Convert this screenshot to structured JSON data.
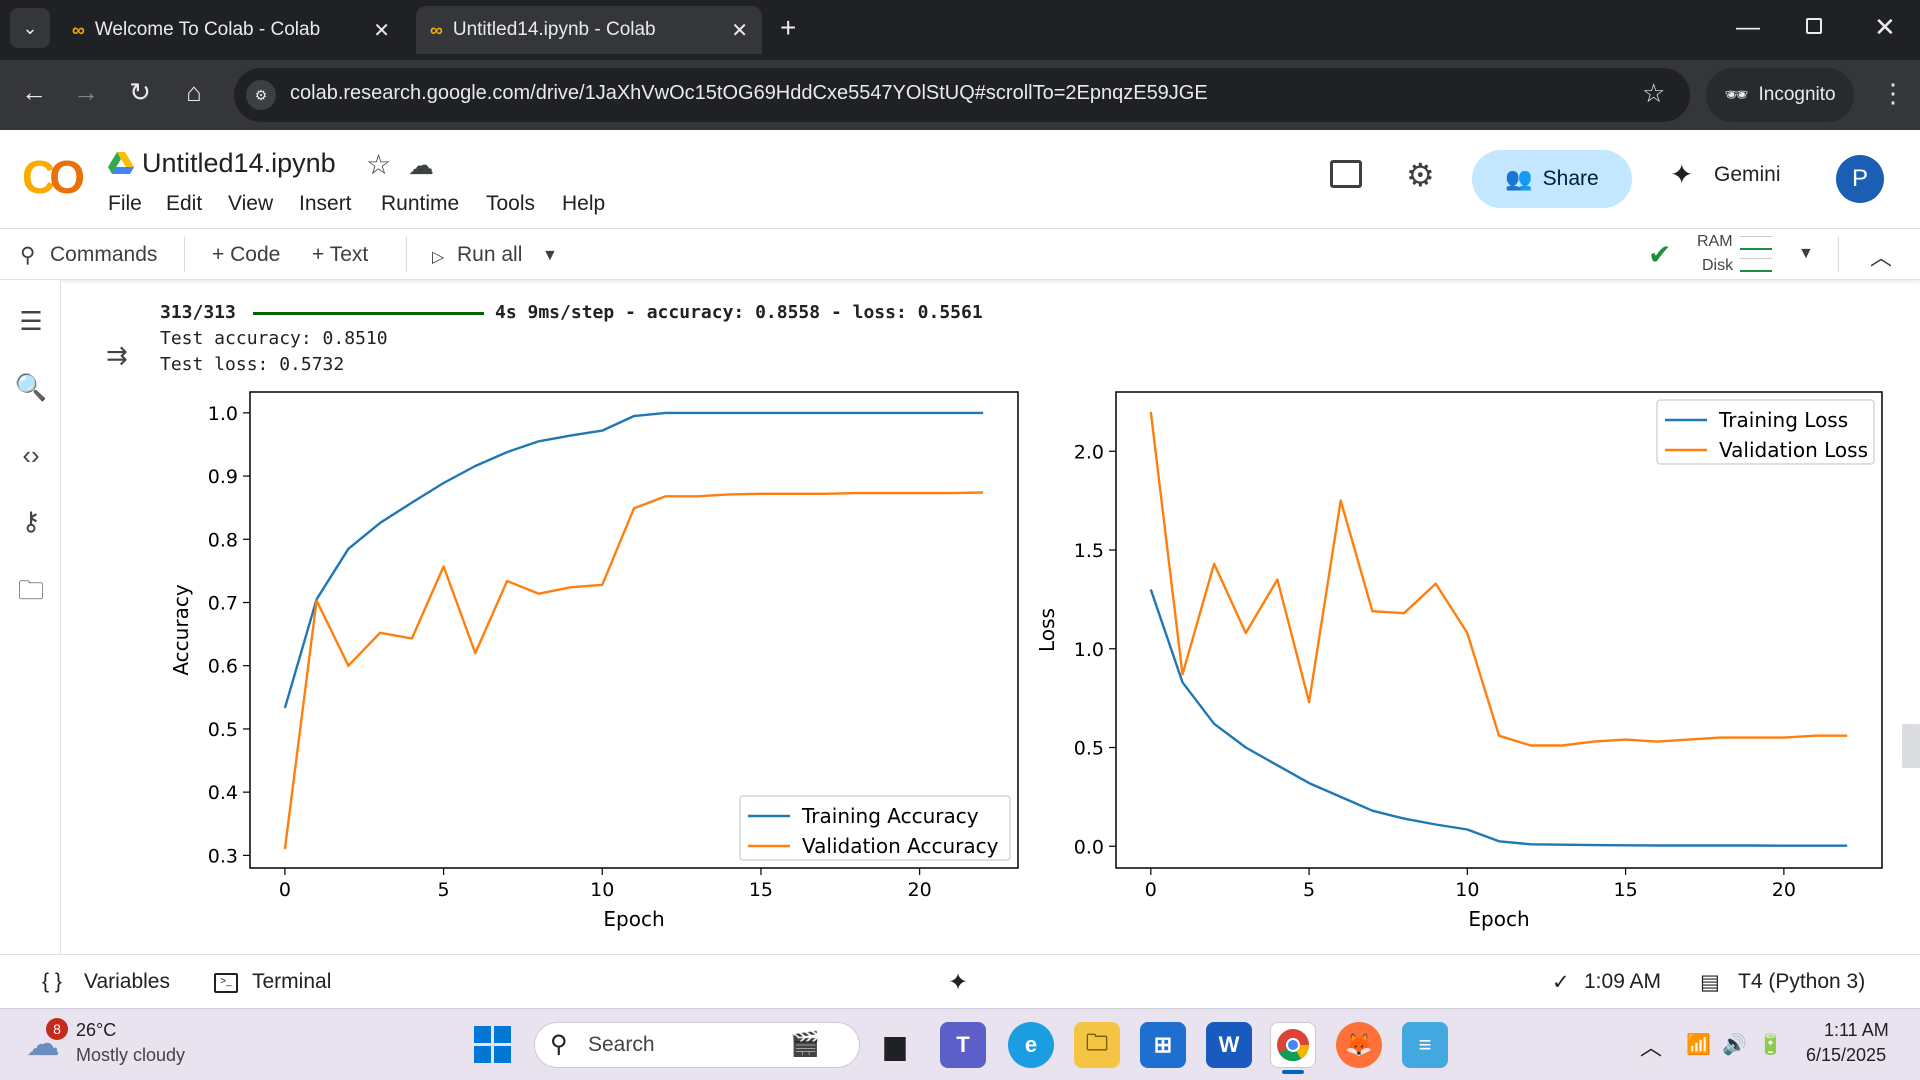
{
  "browser": {
    "tabs": [
      {
        "label": "Welcome To Colab - Colab",
        "active": false
      },
      {
        "label": "Untitled14.ipynb - Colab",
        "active": true
      }
    ],
    "url": "colab.research.google.com/drive/1JaXhVwOc15tOG69HddCxe5547YOlStUQ#scrollTo=2EpnqzE59JGE",
    "incognito_label": "Incognito"
  },
  "header": {
    "logo": "CO",
    "notebook_title": "Untitled14.ipynb",
    "menu": [
      "File",
      "Edit",
      "View",
      "Insert",
      "Runtime",
      "Tools",
      "Help"
    ],
    "share_label": "Share",
    "gemini_label": "Gemini",
    "avatar_initial": "P"
  },
  "toolbar": {
    "commands": "Commands",
    "add_code": "+ Code",
    "add_text": "+ Text",
    "run_all": "Run all",
    "ram_label": "RAM",
    "disk_label": "Disk"
  },
  "output": {
    "progress_line_prefix": "313/313",
    "progress_line_suffix": "4s 9ms/step - accuracy: 0.8558 - loss: 0.5561",
    "test_accuracy": "Test accuracy: 0.8510",
    "test_loss": "Test loss: 0.5732"
  },
  "chart_data": [
    {
      "type": "line",
      "xlabel": "Epoch",
      "ylabel": "Accuracy",
      "xlim": [
        -1.1,
        23.1
      ],
      "ylim": [
        0.28,
        1.033
      ],
      "xticks": [
        0,
        5,
        10,
        15,
        20
      ],
      "yticks": [
        0.3,
        0.4,
        0.5,
        0.6,
        0.7,
        0.8,
        0.9,
        1.0
      ],
      "legend_position": "bottom-right",
      "series": [
        {
          "name": "Training Accuracy",
          "color": "#1f77b4",
          "x": [
            0,
            1,
            2,
            3,
            4,
            5,
            6,
            7,
            8,
            9,
            10,
            11,
            12,
            13,
            14,
            15,
            16,
            17,
            18,
            19,
            20,
            21,
            22
          ],
          "y": [
            0.533,
            0.705,
            0.785,
            0.826,
            0.858,
            0.889,
            0.916,
            0.938,
            0.955,
            0.964,
            0.972,
            0.995,
            1.0,
            1.0,
            1.0,
            1.0,
            1.0,
            1.0,
            1.0,
            1.0,
            1.0,
            1.0,
            1.0
          ]
        },
        {
          "name": "Validation Accuracy",
          "color": "#ff7f0e",
          "x": [
            0,
            1,
            2,
            3,
            4,
            5,
            6,
            7,
            8,
            9,
            10,
            11,
            12,
            13,
            14,
            15,
            16,
            17,
            18,
            19,
            20,
            21,
            22
          ],
          "y": [
            0.31,
            0.703,
            0.6,
            0.652,
            0.643,
            0.757,
            0.62,
            0.734,
            0.714,
            0.724,
            0.728,
            0.849,
            0.868,
            0.868,
            0.871,
            0.872,
            0.872,
            0.872,
            0.873,
            0.873,
            0.873,
            0.873,
            0.874
          ]
        }
      ]
    },
    {
      "type": "line",
      "xlabel": "Epoch",
      "ylabel": "Loss",
      "xlim": [
        -1.1,
        23.1
      ],
      "ylim": [
        -0.11,
        2.3
      ],
      "xticks": [
        0,
        5,
        10,
        15,
        20
      ],
      "yticks": [
        0.0,
        0.5,
        1.0,
        1.5,
        2.0
      ],
      "ytick_labels": [
        "0.0",
        "0.5",
        "1.0",
        "1.5",
        "2.0"
      ],
      "legend_position": "top-right",
      "series": [
        {
          "name": "Training Loss",
          "color": "#1f77b4",
          "x": [
            0,
            1,
            2,
            3,
            4,
            5,
            6,
            7,
            8,
            9,
            10,
            11,
            12,
            13,
            14,
            15,
            16,
            17,
            18,
            19,
            20,
            21,
            22
          ],
          "y": [
            1.3,
            0.83,
            0.62,
            0.5,
            0.41,
            0.32,
            0.25,
            0.18,
            0.14,
            0.11,
            0.085,
            0.025,
            0.01,
            0.008,
            0.006,
            0.005,
            0.004,
            0.004,
            0.004,
            0.004,
            0.003,
            0.003,
            0.003
          ]
        },
        {
          "name": "Validation Loss",
          "color": "#ff7f0e",
          "x": [
            0,
            1,
            2,
            3,
            4,
            5,
            6,
            7,
            8,
            9,
            10,
            11,
            12,
            13,
            14,
            15,
            16,
            17,
            18,
            19,
            20,
            21,
            22
          ],
          "y": [
            2.2,
            0.87,
            1.43,
            1.08,
            1.35,
            0.73,
            1.75,
            1.19,
            1.18,
            1.33,
            1.08,
            0.56,
            0.51,
            0.51,
            0.53,
            0.54,
            0.53,
            0.54,
            0.55,
            0.55,
            0.55,
            0.56,
            0.56
          ]
        }
      ]
    }
  ],
  "statusbar": {
    "variables": "Variables",
    "terminal": "Terminal",
    "exec_time": "1:09 AM",
    "runtime": "T4 (Python 3)"
  },
  "taskbar": {
    "weather_badge": "8",
    "temp": "26°C",
    "weather": "Mostly cloudy",
    "search_placeholder": "Search",
    "time": "1:11 AM",
    "date": "6/15/2025"
  },
  "colors": {
    "train": "#1f77b4",
    "val": "#ff7f0e",
    "chrome_bg": "#202124",
    "share_bg": "#c2e7ff"
  }
}
